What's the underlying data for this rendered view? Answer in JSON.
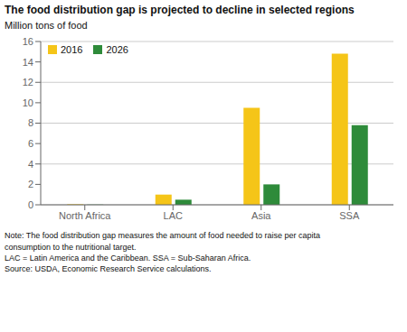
{
  "chart_data": {
    "type": "bar",
    "title": "The food distribution gap is projected to decline in selected regions",
    "y_label": "Million tons of food",
    "categories": [
      "North Africa",
      "LAC",
      "Asia",
      "SSA"
    ],
    "series": [
      {
        "name": "2016",
        "color": "#F5C518",
        "values": [
          0.05,
          1.0,
          9.5,
          14.8
        ]
      },
      {
        "name": "2026",
        "color": "#2E8B3A",
        "values": [
          0.02,
          0.5,
          2.0,
          7.8
        ]
      }
    ],
    "ylim": [
      0,
      16
    ],
    "yticks": [
      0,
      2,
      4,
      6,
      8,
      10,
      12,
      14,
      16
    ],
    "grid": true,
    "legend": "upper left",
    "note": "Note: The food distribution gap measures the amount of food needed to raise per capita\nconsumption to the nutritional target.\nLAC = Latin America and the Caribbean. SSA = Sub-Saharan Africa.\nSource: USDA, Economic Research Service calculations."
  }
}
